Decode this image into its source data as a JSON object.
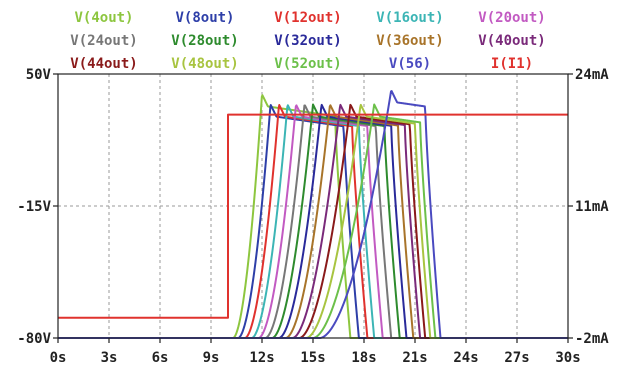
{
  "chart_data": {
    "type": "line",
    "title": "",
    "xlabel": "",
    "ylabel": "",
    "y2label": "",
    "x_unit": "s",
    "xlim": [
      0,
      30
    ],
    "ylim": [
      -80,
      50
    ],
    "y2lim": [
      -2,
      24
    ],
    "x_ticks": [
      "0s",
      "3s",
      "6s",
      "9s",
      "12s",
      "15s",
      "18s",
      "21s",
      "24s",
      "27s",
      "30s"
    ],
    "y_ticks_left": [
      "50V",
      "-15V",
      "-80V"
    ],
    "y_ticks_right": [
      "24mA",
      "11mA",
      "-2mA"
    ],
    "grid": true,
    "legend_position": "top",
    "series": [
      {
        "name": "V(4out)",
        "color": "#8dc63f",
        "t_start": 10.3,
        "t_peak": 12.0,
        "peak": 40,
        "t_end": 17.2
      },
      {
        "name": "V(8out)",
        "color": "#2e3fa8",
        "t_start": 10.6,
        "t_peak": 12.5,
        "peak": 35,
        "t_end": 17.7
      },
      {
        "name": "V(12out)",
        "color": "#e0322e",
        "t_start": 11.0,
        "t_peak": 13.0,
        "peak": 35,
        "t_end": 18.2
      },
      {
        "name": "V(16out)",
        "color": "#3cb5b5",
        "t_start": 11.4,
        "t_peak": 13.5,
        "peak": 35,
        "t_end": 18.6
      },
      {
        "name": "V(20out)",
        "color": "#c25ac2",
        "t_start": 11.8,
        "t_peak": 14.0,
        "peak": 35,
        "t_end": 19.1
      },
      {
        "name": "V(24out)",
        "color": "#777777",
        "t_start": 12.2,
        "t_peak": 14.5,
        "peak": 35,
        "t_end": 19.6
      },
      {
        "name": "V(28out)",
        "color": "#2e8b2e",
        "t_start": 12.6,
        "t_peak": 15.0,
        "peak": 35,
        "t_end": 20.1
      },
      {
        "name": "V(32out)",
        "color": "#2a2a9a",
        "t_start": 13.0,
        "t_peak": 15.5,
        "peak": 35,
        "t_end": 20.5
      },
      {
        "name": "V(36out)",
        "color": "#a8742a",
        "t_start": 13.4,
        "t_peak": 16.0,
        "peak": 35,
        "t_end": 20.9
      },
      {
        "name": "V(40out)",
        "color": "#7a2a7a",
        "t_start": 13.8,
        "t_peak": 16.6,
        "peak": 35,
        "t_end": 21.3
      },
      {
        "name": "V(44out)",
        "color": "#8a1a1a",
        "t_start": 14.2,
        "t_peak": 17.2,
        "peak": 35,
        "t_end": 21.6
      },
      {
        "name": "V(48out)",
        "color": "#a8c440",
        "t_start": 14.6,
        "t_peak": 17.8,
        "peak": 35,
        "t_end": 21.9
      },
      {
        "name": "V(52out)",
        "color": "#6cc04a",
        "t_start": 15.0,
        "t_peak": 18.6,
        "peak": 35,
        "t_end": 22.2
      },
      {
        "name": "V(56)",
        "color": "#4a4ac0",
        "t_start": 15.4,
        "t_peak": 19.6,
        "peak": 42,
        "t_end": 22.5
      },
      {
        "name": "I(I1)",
        "color": "#e0322e",
        "axis": "right",
        "x": [
          0,
          10,
          10,
          30
        ],
        "values": [
          0,
          0,
          20,
          20
        ]
      }
    ],
    "baseline_voltage": -80
  }
}
